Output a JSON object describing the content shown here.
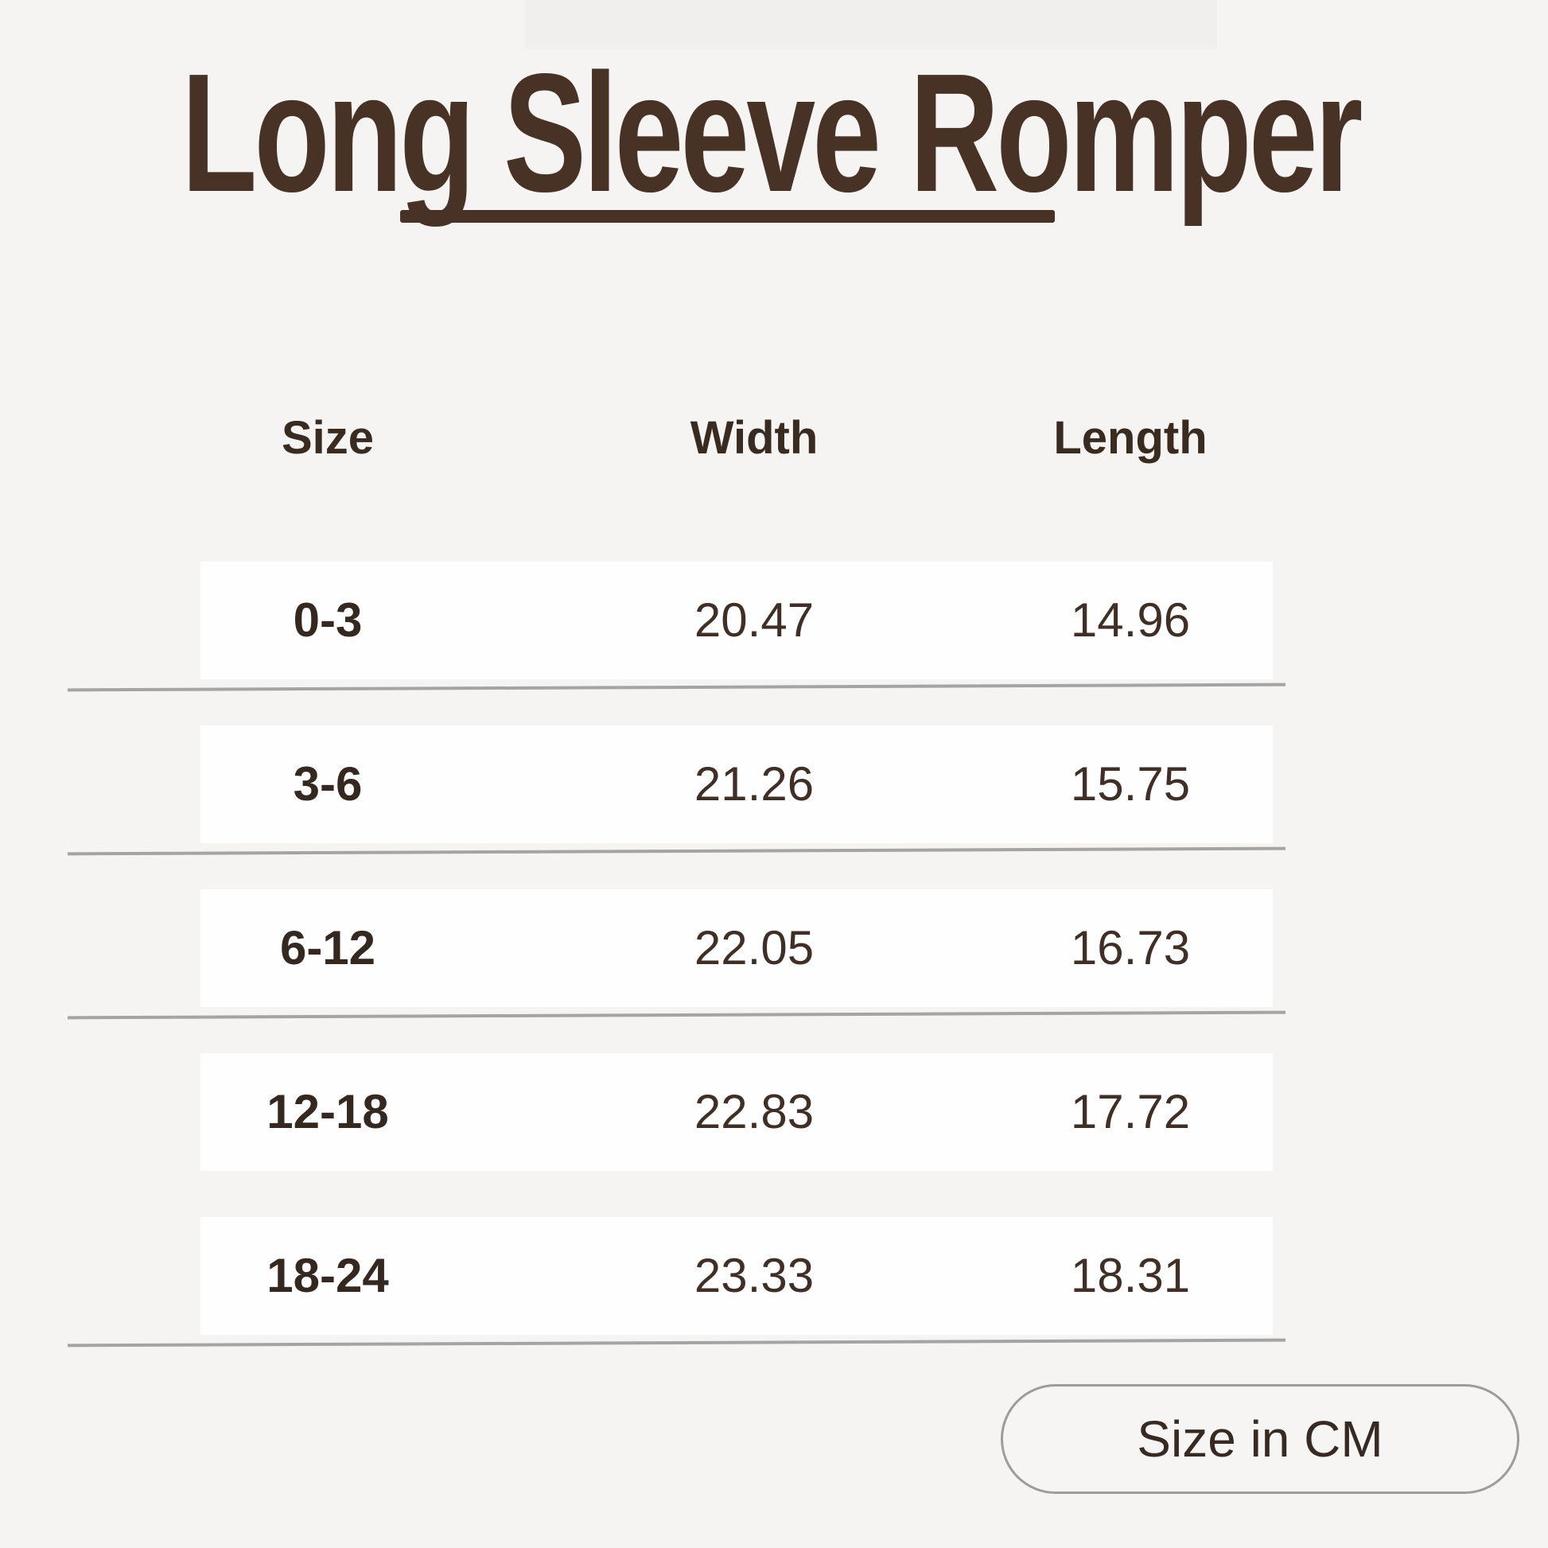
{
  "page": {
    "title": "Long Sleeve Romper",
    "unit_badge": "Size in CM"
  },
  "table": {
    "headers": {
      "size": "Size",
      "width": "Width",
      "length": "Length"
    },
    "rows": [
      {
        "size": "0-3",
        "width": "20.47",
        "length": "14.96"
      },
      {
        "size": "3-6",
        "width": "21.26",
        "length": "15.75"
      },
      {
        "size": "6-12",
        "width": "22.05",
        "length": "16.73"
      },
      {
        "size": "12-18",
        "width": "22.83",
        "length": "17.72"
      },
      {
        "size": "18-24",
        "width": "23.33",
        "length": "18.31"
      }
    ]
  },
  "colors": {
    "accent_brown": "#483226",
    "text_brown": "#3f2f26",
    "row_background": "#fefefe",
    "page_background": "#f5f4f2",
    "separator_gray": "#a6a4a2",
    "pill_border_gray": "#9e9b98"
  },
  "chart_data": {
    "type": "table",
    "title": "Long Sleeve Romper",
    "columns": [
      "Size",
      "Width",
      "Length"
    ],
    "rows": [
      [
        "0-3",
        20.47,
        14.96
      ],
      [
        "3-6",
        21.26,
        15.75
      ],
      [
        "6-12",
        22.05,
        16.73
      ],
      [
        "12-18",
        22.83,
        17.72
      ],
      [
        "18-24",
        23.33,
        18.31
      ]
    ],
    "unit_note": "Size in CM",
    "layout": "size chart table, white row bands on light gray background, gray hand-drawn separator lines under rows 1-3 and 5"
  }
}
